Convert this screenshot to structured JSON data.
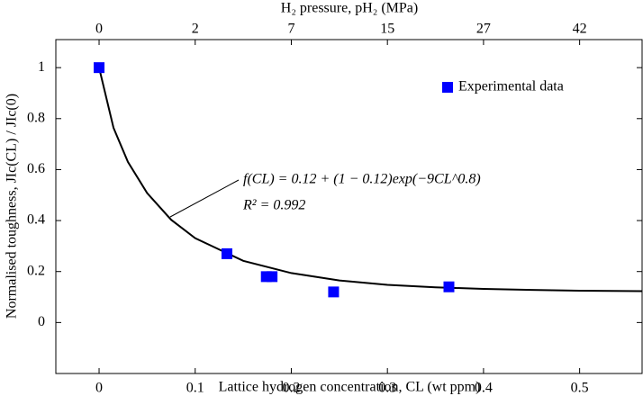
{
  "chart_data": {
    "type": "scatter",
    "xlabel": "Lattice hydrogen concentration, CL (wt ppm)",
    "ylabel": "Normalised toughness, JIc(CL) / JIc(0)",
    "x2label": "H₂ pressure, pH₂ (MPa)",
    "xlim": [
      -0.045,
      0.565
    ],
    "ylim": [
      -0.2,
      1.11
    ],
    "xticks": [
      0,
      0.1,
      0.2,
      0.3,
      0.4,
      0.5
    ],
    "yticks": [
      0,
      0.2,
      0.4,
      0.6,
      0.8,
      1
    ],
    "x2ticks": [
      0,
      {
        "value": 0.1,
        "label": "2"
      },
      {
        "value": 0.2,
        "label": "7"
      },
      {
        "value": 0.3,
        "label": "15"
      },
      {
        "value": 0.4,
        "label": "27"
      },
      {
        "value": 0.5,
        "label": "42"
      }
    ],
    "legend": "upper right",
    "annotations": [
      "f(CL) = 0.12 + (1 − 0.12)exp(−9CL^0.8)",
      "R² = 0.992"
    ],
    "series": [
      {
        "name": "Experimental data",
        "type": "scatter",
        "color": "#0000ff",
        "x": [
          0,
          0.133,
          0.174,
          0.18,
          0.244,
          0.364
        ],
        "values": [
          1,
          0.27,
          0.18,
          0.18,
          0.12,
          0.14
        ]
      },
      {
        "type": "line",
        "color": "#000000",
        "x": [
          0,
          0.015,
          0.03,
          0.05,
          0.075,
          0.1,
          0.15,
          0.2,
          0.25,
          0.3,
          0.35,
          0.4,
          0.45,
          0.5,
          0.565
        ],
        "values": [
          1,
          0.764,
          0.63,
          0.508,
          0.403,
          0.331,
          0.242,
          0.194,
          0.165,
          0.148,
          0.138,
          0.132,
          0.128,
          0.125,
          0.123
        ]
      }
    ]
  }
}
